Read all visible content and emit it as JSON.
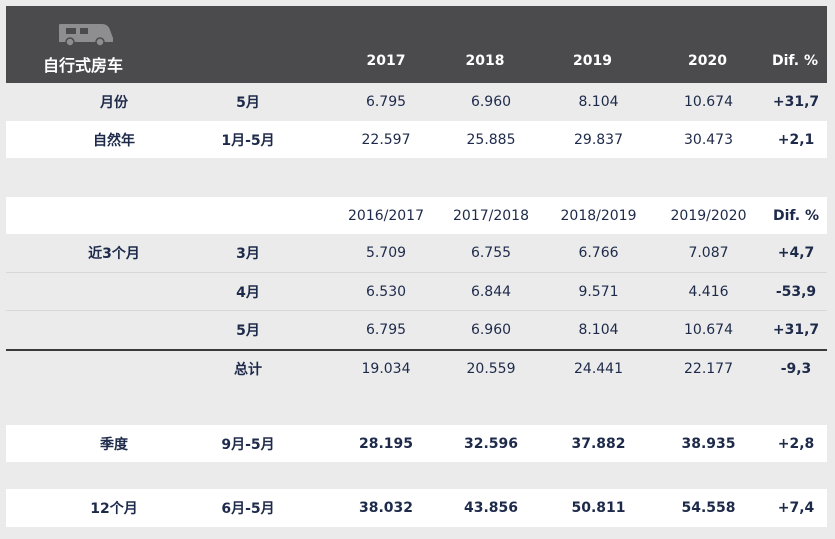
{
  "header": {
    "icon": "camper-van-icon",
    "title": "自行式房车",
    "columns": [
      "2017",
      "2018",
      "2019",
      "2020",
      "Dif. %"
    ]
  },
  "top_rows": [
    {
      "label": "月份",
      "period": "5月",
      "values": [
        "6.795",
        "6.960",
        "8.104",
        "10.674"
      ],
      "dif": "+31,7"
    },
    {
      "label": "自然年",
      "period": "1月-5月",
      "values": [
        "22.597",
        "25.885",
        "29.837",
        "30.473"
      ],
      "dif": "+2,1"
    }
  ],
  "season_header": {
    "columns": [
      "2016/2017",
      "2017/2018",
      "2018/2019",
      "2019/2020",
      "Dif. %"
    ]
  },
  "recent": {
    "label": "近3个月",
    "rows": [
      {
        "period": "3月",
        "values": [
          "5.709",
          "6.755",
          "6.766",
          "7.087"
        ],
        "dif": "+4,7"
      },
      {
        "period": "4月",
        "values": [
          "6.530",
          "6.844",
          "9.571",
          "4.416"
        ],
        "dif": "-53,9"
      },
      {
        "period": "5月",
        "values": [
          "6.795",
          "6.960",
          "8.104",
          "10.674"
        ],
        "dif": "+31,7"
      }
    ],
    "total": {
      "period": "总计",
      "values": [
        "19.034",
        "20.559",
        "24.441",
        "22.177"
      ],
      "dif": "-9,3"
    }
  },
  "season": {
    "label": "季度",
    "period": "9月-5月",
    "values": [
      "28.195",
      "32.596",
      "37.882",
      "38.935"
    ],
    "dif": "+2,8"
  },
  "twelve": {
    "label": "12个月",
    "period": "6月-5月",
    "values": [
      "38.032",
      "43.856",
      "50.811",
      "54.558"
    ],
    "dif": "+7,4"
  }
}
